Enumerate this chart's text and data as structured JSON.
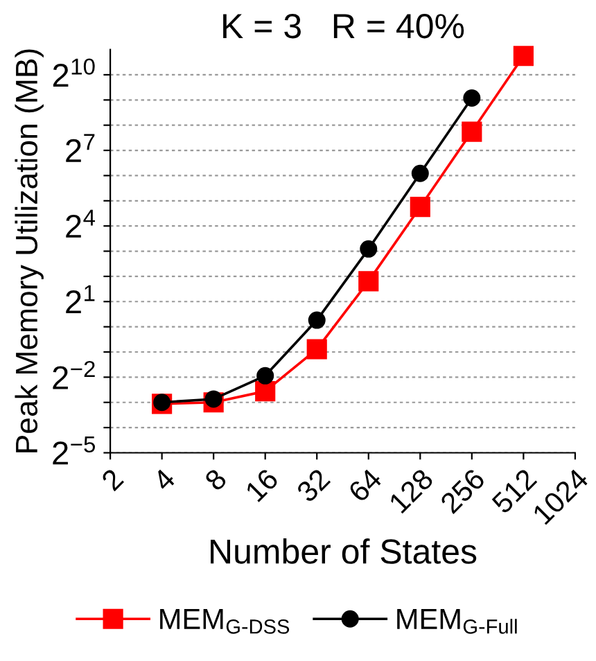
{
  "chart_data": {
    "type": "line",
    "title": "K = 3   R = 40%",
    "xlabel": "Number of States",
    "ylabel": "Peak Memory Utilization (MB)",
    "log": "xy",
    "grid": "y",
    "legend": "bottom",
    "line_style": "solid",
    "x": [
      4,
      8,
      16,
      32,
      64,
      128,
      256,
      512
    ],
    "xlim": [
      2,
      1024
    ],
    "xticks": [
      2,
      4,
      8,
      16,
      32,
      64,
      128,
      256,
      512,
      1024
    ],
    "ylim": [
      0.03125,
      2048
    ],
    "yticks": [
      {
        "value": 0.03125,
        "label": "2$^{−5}$"
      },
      {
        "value": 0.0625,
        "label": null
      },
      {
        "value": 0.125,
        "label": null
      },
      {
        "value": 0.25,
        "label": "2$^{−2}$"
      },
      {
        "value": 0.5,
        "label": null
      },
      {
        "value": 1,
        "label": null
      },
      {
        "value": 2,
        "label": "2$^{1}$"
      },
      {
        "value": 4,
        "label": null
      },
      {
        "value": 8,
        "label": null
      },
      {
        "value": 16,
        "label": "2$^{4}$"
      },
      {
        "value": 32,
        "label": null
      },
      {
        "value": 64,
        "label": null
      },
      {
        "value": 128,
        "label": "2$^{7}$"
      },
      {
        "value": 256,
        "label": null
      },
      {
        "value": 512,
        "label": null
      },
      {
        "value": 1024,
        "label": "2$^{10}$"
      }
    ],
    "series": [
      {
        "name": "MEM$_{G-DSS}$",
        "color": "#ff0000",
        "marker": "square",
        "values": [
          0.12,
          0.125,
          0.17,
          0.54,
          3.5,
          27,
          214,
          1720
        ]
      },
      {
        "name": "MEM$_{G-Full}$",
        "color": "#000000",
        "marker": "circle",
        "values": [
          0.125,
          0.137,
          0.26,
          1.2,
          8.5,
          68,
          540,
          null
        ]
      }
    ]
  }
}
